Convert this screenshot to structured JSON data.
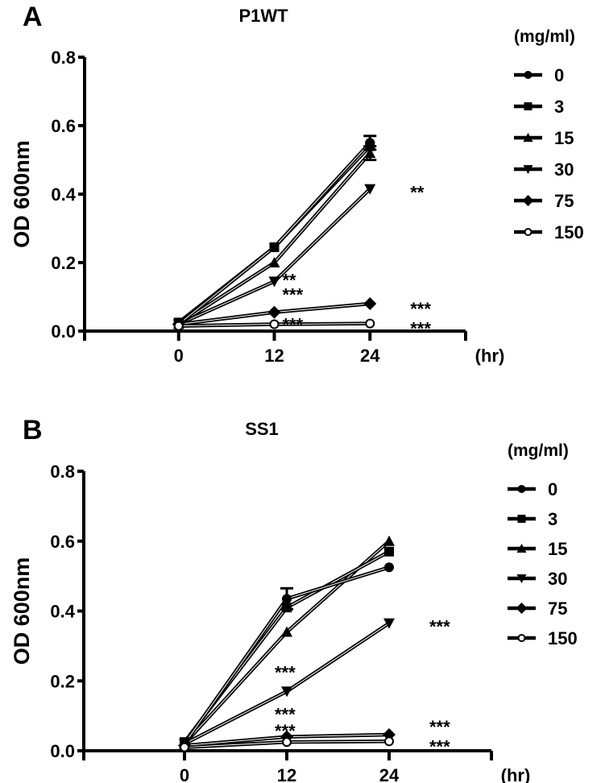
{
  "chart_data": [
    {
      "type": "line",
      "panel_label": "A",
      "title": "P1WT",
      "xlabel": "(hr)",
      "ylabel": "OD 600nm",
      "xlim": [
        -12,
        36
      ],
      "ylim": [
        0,
        0.8
      ],
      "xticks": [
        0,
        12,
        24
      ],
      "yticks": [
        "0.0",
        "0.2",
        "0.4",
        "0.6",
        "0.8"
      ],
      "legend_title": "(mg/ml)",
      "legend_position": "right",
      "x": [
        0,
        12,
        24
      ],
      "series": [
        {
          "name": "0",
          "marker": "circle",
          "values": [
            0.02,
            0.245,
            0.55
          ],
          "errors": [
            0,
            0,
            0.02
          ]
        },
        {
          "name": "3",
          "marker": "square",
          "values": [
            0.025,
            0.245,
            0.54
          ],
          "errors": [
            0,
            0,
            0
          ]
        },
        {
          "name": "15",
          "marker": "triangle-up",
          "values": [
            0.02,
            0.2,
            0.52
          ],
          "errors": [
            0,
            0,
            0.02
          ]
        },
        {
          "name": "30",
          "marker": "triangle-down",
          "values": [
            0.02,
            0.145,
            0.415
          ],
          "errors": [
            0,
            0,
            0
          ]
        },
        {
          "name": "75",
          "marker": "diamond",
          "values": [
            0.02,
            0.055,
            0.08
          ],
          "errors": [
            0,
            0,
            0
          ]
        },
        {
          "name": "150",
          "marker": "open-circle",
          "values": [
            0.015,
            0.02,
            0.022
          ],
          "errors": [
            0,
            0,
            0
          ]
        }
      ],
      "annotations": [
        {
          "text": "**",
          "x": 12,
          "y": 0.145
        },
        {
          "text": "***",
          "x": 12,
          "y": 0.065
        },
        {
          "text": "***",
          "x": 12,
          "y": 0.02
        },
        {
          "text": "**",
          "x": 24,
          "y": 0.415
        },
        {
          "text": "***",
          "x": 24,
          "y": 0.08
        },
        {
          "text": "***",
          "x": 24,
          "y": 0.022
        }
      ]
    },
    {
      "type": "line",
      "panel_label": "B",
      "title": "SS1",
      "xlabel": "(hr)",
      "ylabel": "OD 600nm",
      "xlim": [
        -12,
        36
      ],
      "ylim": [
        0,
        0.8
      ],
      "xticks": [
        0,
        12,
        24
      ],
      "yticks": [
        "0.0",
        "0.2",
        "0.4",
        "0.6",
        "0.8"
      ],
      "legend_title": "(mg/ml)",
      "legend_position": "right",
      "x": [
        0,
        12,
        24
      ],
      "series": [
        {
          "name": "0",
          "marker": "circle",
          "values": [
            0.02,
            0.435,
            0.525
          ],
          "errors": [
            0,
            0.03,
            0
          ]
        },
        {
          "name": "3",
          "marker": "square",
          "values": [
            0.025,
            0.41,
            0.57
          ],
          "errors": [
            0,
            0,
            0
          ]
        },
        {
          "name": "15",
          "marker": "triangle-up",
          "values": [
            0.02,
            0.34,
            0.6
          ],
          "errors": [
            0,
            0,
            0
          ]
        },
        {
          "name": "30",
          "marker": "triangle-down",
          "values": [
            0.02,
            0.17,
            0.365
          ],
          "errors": [
            0,
            0,
            0
          ]
        },
        {
          "name": "75",
          "marker": "diamond",
          "values": [
            0.015,
            0.04,
            0.046
          ],
          "errors": [
            0,
            0,
            0
          ]
        },
        {
          "name": "150",
          "marker": "open-circle",
          "values": [
            0.01,
            0.025,
            0.027
          ],
          "errors": [
            0,
            0,
            0
          ]
        }
      ],
      "annotations": [
        {
          "text": "***",
          "x": 12,
          "y": 0.17
        },
        {
          "text": "***",
          "x": 12,
          "y": 0.04
        },
        {
          "text": "***",
          "x": 12,
          "y": 0.025
        },
        {
          "text": "***",
          "x": 24,
          "y": 0.365
        },
        {
          "text": "***",
          "x": 24,
          "y": 0.046
        },
        {
          "text": "***",
          "x": 24,
          "y": 0.027
        }
      ]
    }
  ]
}
